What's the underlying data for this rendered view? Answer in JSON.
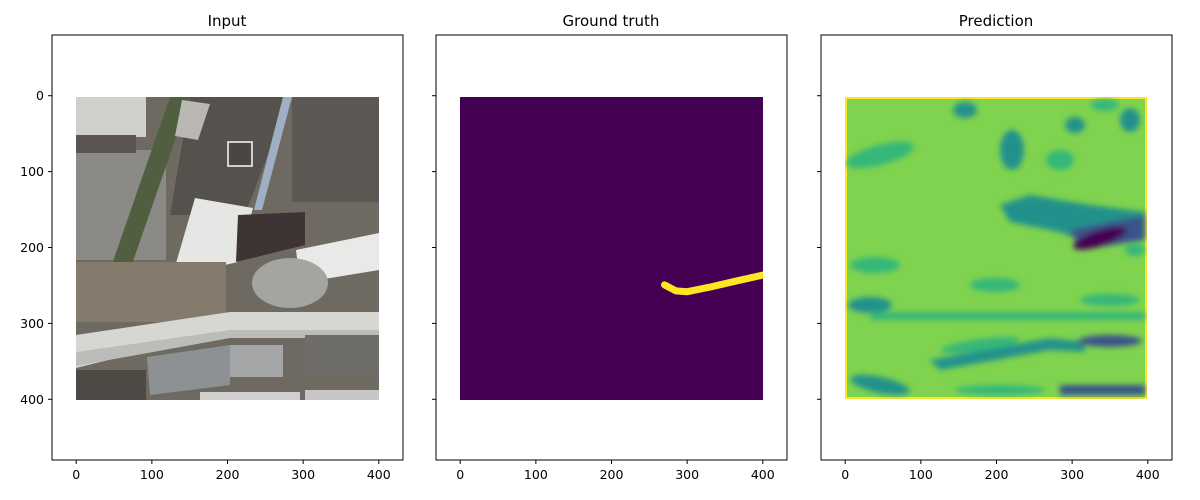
{
  "chart_data": [
    {
      "type": "image",
      "title": "Input",
      "xlabel": "",
      "ylabel": "",
      "image_extent": [
        0,
        400
      ],
      "xlim": [
        -32,
        432
      ],
      "ylim": [
        480,
        -80
      ],
      "xticks": [
        0,
        100,
        200,
        300,
        400
      ],
      "yticks": [
        0,
        100,
        200,
        300,
        400
      ],
      "x_tick_labels": [
        "0",
        "100",
        "200",
        "300",
        "400"
      ],
      "y_tick_labels": [
        "0",
        "100",
        "200",
        "300",
        "400"
      ],
      "content": "aerial-rgb-photo",
      "colors": {
        "ground": "#6e6a62",
        "roof_white": "#e6e6e4",
        "road": "#c9c9c5",
        "roof_dark": "#3e3433",
        "roof_grey": "#8e9193",
        "vegetation": "#4f5f3f"
      }
    },
    {
      "type": "image",
      "title": "Ground truth",
      "xlabel": "",
      "ylabel": "",
      "image_extent": [
        0,
        400
      ],
      "xlim": [
        -32,
        432
      ],
      "ylim": [
        480,
        -80
      ],
      "xticks": [
        0,
        100,
        200,
        300,
        400
      ],
      "x_tick_labels": [
        "0",
        "100",
        "200",
        "300",
        "400"
      ],
      "y_tick_labels_shown": false,
      "colormap": "viridis",
      "colors": {
        "background": "#440154",
        "mask": "#fde725"
      },
      "mask_polyline": [
        [
          270,
          248
        ],
        [
          285,
          256
        ],
        [
          300,
          257
        ],
        [
          330,
          251
        ],
        [
          360,
          244
        ],
        [
          400,
          235
        ]
      ]
    },
    {
      "type": "heatmap",
      "title": "Prediction",
      "xlabel": "",
      "ylabel": "",
      "image_extent": [
        0,
        400
      ],
      "xlim": [
        -32,
        432
      ],
      "ylim": [
        480,
        -80
      ],
      "xticks": [
        0,
        100,
        200,
        300,
        400
      ],
      "x_tick_labels": [
        "0",
        "100",
        "200",
        "300",
        "400"
      ],
      "y_tick_labels_shown": false,
      "colormap": "viridis",
      "colors": {
        "border": "#fde725",
        "high": "#7fd34e",
        "mid": "#35b779",
        "low": "#21918c",
        "lowest": "#3b528b",
        "min": "#440154"
      }
    }
  ]
}
